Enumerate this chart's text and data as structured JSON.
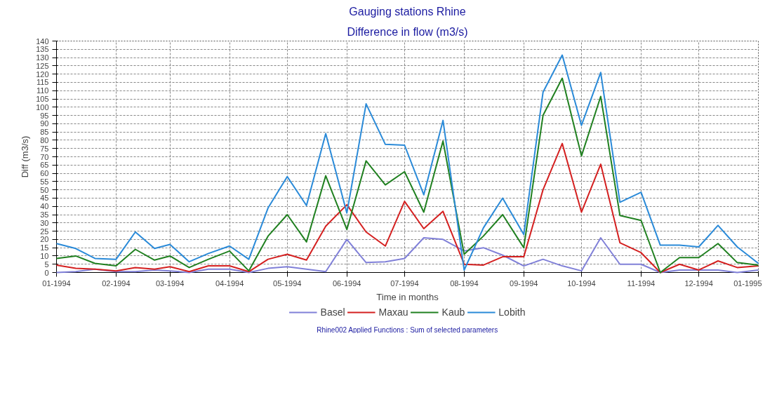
{
  "chart_data": {
    "type": "line",
    "title": "Gauging stations Rhine",
    "subtitle": "Difference in flow (m3/s)",
    "xlabel": "Time in months",
    "ylabel": "Diff (m3/s)",
    "x": [
      "1994-01-01",
      "1994-01-11",
      "1994-01-21",
      "1994-02-01",
      "1994-02-11",
      "1994-02-21",
      "1994-03-01",
      "1994-03-11",
      "1994-03-21",
      "1994-04-01",
      "1994-04-11",
      "1994-04-21",
      "1994-05-01",
      "1994-05-11",
      "1994-05-21",
      "1994-06-01",
      "1994-06-11",
      "1994-06-21",
      "1994-07-01",
      "1994-07-11",
      "1994-07-21",
      "1994-08-01",
      "1994-08-11",
      "1994-08-21",
      "1994-09-01",
      "1994-09-11",
      "1994-09-21",
      "1994-10-01",
      "1994-10-11",
      "1994-10-21",
      "1994-11-01",
      "1994-11-11",
      "1994-11-21",
      "1994-12-01",
      "1994-12-11",
      "1994-12-21",
      "1995-01-01"
    ],
    "series": [
      {
        "name": "Basel",
        "color": "#8080d8",
        "values": [
          0,
          0.5,
          2,
          0.5,
          0.5,
          1.5,
          1,
          0,
          2,
          2,
          0,
          2.5,
          3.5,
          2,
          0.5,
          20,
          6,
          6.5,
          8.5,
          21,
          20,
          13,
          15,
          10.5,
          4,
          8,
          4,
          1,
          21,
          5,
          5,
          0,
          1.5,
          1.5,
          1.5,
          0,
          1.5
        ]
      },
      {
        "name": "Maxau",
        "color": "#d42020",
        "values": [
          4.5,
          2.5,
          2,
          1,
          3,
          2,
          3.5,
          0.5,
          4,
          4,
          0.5,
          8,
          11,
          7.5,
          28,
          41,
          24.5,
          16,
          43,
          26.5,
          37,
          5,
          4.5,
          9.5,
          9.5,
          50,
          78,
          36.5,
          65.5,
          18,
          12,
          0,
          5,
          1.5,
          7,
          3,
          4
        ]
      },
      {
        "name": "Kaub",
        "color": "#208020",
        "values": [
          8.5,
          10,
          5.5,
          4,
          14,
          7.5,
          10,
          3,
          8,
          13,
          1,
          22,
          35,
          18.5,
          58.5,
          26,
          67.5,
          53,
          61,
          36.5,
          79.5,
          11,
          22,
          35,
          15,
          95,
          117.5,
          70.5,
          106.5,
          34.5,
          31.5,
          0,
          9,
          9,
          17.5,
          6,
          4.5
        ]
      },
      {
        "name": "Lobith",
        "color": "#2a8ad8",
        "values": [
          17.5,
          14.5,
          8.5,
          8,
          24.5,
          14.5,
          17,
          6.5,
          11.5,
          16,
          8,
          39,
          58,
          40.5,
          84,
          36,
          102,
          77.5,
          77,
          47,
          92,
          1.5,
          27,
          45,
          23,
          109,
          131.5,
          89,
          121,
          42.5,
          48.5,
          16.5,
          16.5,
          15.5,
          28.5,
          15.5,
          5.5
        ]
      }
    ],
    "xlim": [
      "1994-01-01",
      "1995-01-01"
    ],
    "xticks": [
      {
        "value": "1994-01-01",
        "label": "01-1994"
      },
      {
        "value": "1994-02-01",
        "label": "02-1994"
      },
      {
        "value": "1994-03-01",
        "label": "03-1994"
      },
      {
        "value": "1994-04-01",
        "label": "04-1994"
      },
      {
        "value": "1994-05-01",
        "label": "05-1994"
      },
      {
        "value": "1994-06-01",
        "label": "06-1994"
      },
      {
        "value": "1994-07-01",
        "label": "07-1994"
      },
      {
        "value": "1994-08-01",
        "label": "08-1994"
      },
      {
        "value": "1994-09-01",
        "label": "09-1994"
      },
      {
        "value": "1994-10-01",
        "label": "10-1994"
      },
      {
        "value": "1994-11-01",
        "label": "11-1994"
      },
      {
        "value": "1994-12-01",
        "label": "12-1994"
      },
      {
        "value": "1995-01-01",
        "label": "01-1995"
      }
    ],
    "ylim": [
      0,
      140
    ],
    "yticks": [
      0,
      5,
      10,
      15,
      20,
      25,
      30,
      35,
      40,
      45,
      50,
      55,
      60,
      65,
      70,
      75,
      80,
      85,
      90,
      95,
      100,
      105,
      110,
      115,
      120,
      125,
      130,
      135,
      140
    ],
    "grid": true,
    "legend": "bottom",
    "marker": "none",
    "line_style": "solid",
    "annotations": [
      "Rhine002 Applied Functions : Sum of selected parameters"
    ]
  }
}
